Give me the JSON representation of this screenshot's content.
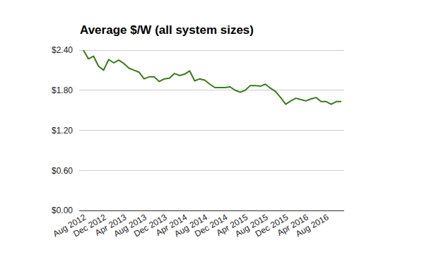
{
  "chart_data": {
    "type": "line",
    "title": "Average $/W (all system sizes)",
    "categories": [
      "Aug 2012",
      null,
      null,
      null,
      "Dec 2012",
      null,
      null,
      null,
      "Apr 2013",
      null,
      null,
      null,
      "Aug 2013",
      null,
      null,
      null,
      "Dec 2013",
      null,
      null,
      null,
      "Apr 2014",
      null,
      null,
      null,
      "Aug 2014",
      null,
      null,
      null,
      "Dec 2014",
      null,
      null,
      null,
      "Apr 2015",
      null,
      null,
      null,
      "Aug 2015",
      null,
      null,
      null,
      "Dec 2015",
      null,
      null,
      null,
      "Apr 2016",
      null,
      null,
      null,
      "Aug 2016",
      null,
      null,
      null
    ],
    "values": [
      2.4,
      2.27,
      2.31,
      2.16,
      2.1,
      2.26,
      2.21,
      2.25,
      2.2,
      2.13,
      2.1,
      2.07,
      1.97,
      2.0,
      2.0,
      1.93,
      1.97,
      1.98,
      2.05,
      2.02,
      2.04,
      2.09,
      1.94,
      1.97,
      1.95,
      1.89,
      1.84,
      1.84,
      1.84,
      1.85,
      1.8,
      1.77,
      1.8,
      1.87,
      1.87,
      1.86,
      1.89,
      1.83,
      1.78,
      1.69,
      1.59,
      1.64,
      1.68,
      1.66,
      1.64,
      1.67,
      1.69,
      1.63,
      1.63,
      1.59,
      1.63,
      1.63
    ],
    "color": "#3a7a1c",
    "ylim": [
      0,
      2.4
    ],
    "yticks": [
      {
        "value": 0,
        "label": "$0.00"
      },
      {
        "value": 0.6,
        "label": "$0.60"
      },
      {
        "value": 1.2,
        "label": "$1.20"
      },
      {
        "value": 1.8,
        "label": "$1.80"
      },
      {
        "value": 2.4,
        "label": "$2.40"
      }
    ],
    "grid": true
  }
}
